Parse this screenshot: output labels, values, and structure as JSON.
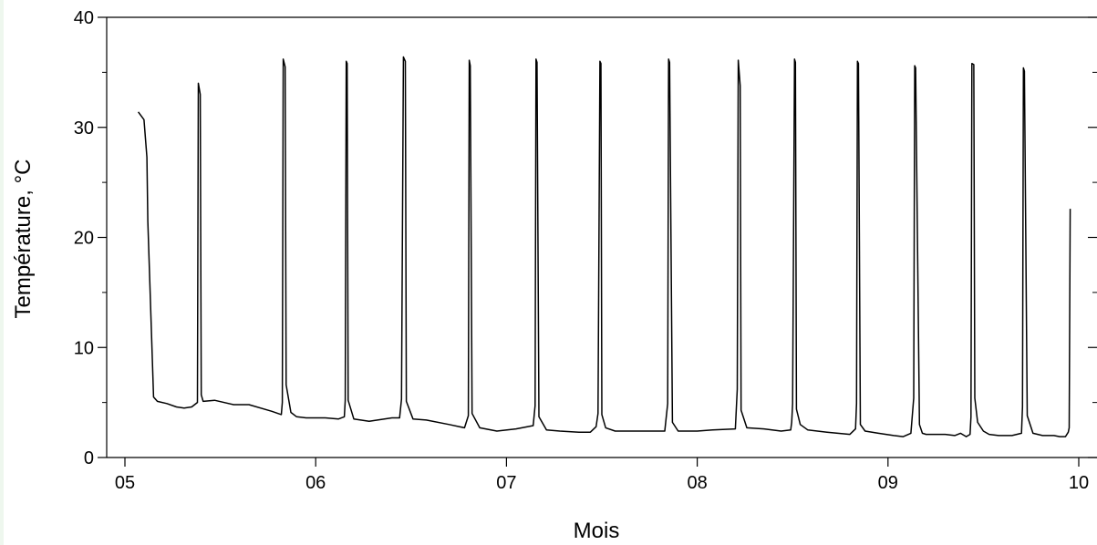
{
  "chart_data": {
    "type": "line",
    "xlabel": "Mois",
    "ylabel": "Température, °C",
    "xlim": [
      4.975,
      10.0
    ],
    "ylim": [
      0,
      40
    ],
    "xticks": [
      {
        "value": 5,
        "label": "05"
      },
      {
        "value": 6,
        "label": "06"
      },
      {
        "value": 7,
        "label": "07"
      },
      {
        "value": 8,
        "label": "08"
      },
      {
        "value": 9,
        "label": "09"
      },
      {
        "value": 10,
        "label": "10"
      }
    ],
    "yticks": [
      {
        "value": 0,
        "label": "0"
      },
      {
        "value": 10,
        "label": "10"
      },
      {
        "value": 20,
        "label": "20"
      },
      {
        "value": 30,
        "label": "30"
      },
      {
        "value": 40,
        "label": "40"
      }
    ],
    "y_minor_ticks": [
      5,
      15,
      25,
      35
    ],
    "grid": false,
    "series": [
      {
        "color": "#000000",
        "points": [
          [
            5.07,
            31.4
          ],
          [
            5.1,
            30.7
          ],
          [
            5.115,
            27.3
          ],
          [
            5.12,
            21.5
          ],
          [
            5.15,
            5.5
          ],
          [
            5.17,
            5.1
          ],
          [
            5.22,
            4.9
          ],
          [
            5.27,
            4.6
          ],
          [
            5.31,
            4.5
          ],
          [
            5.35,
            4.6
          ],
          [
            5.38,
            5.0
          ],
          [
            5.385,
            34.0
          ],
          [
            5.395,
            33.0
          ],
          [
            5.4,
            5.7
          ],
          [
            5.41,
            5.1
          ],
          [
            5.47,
            5.2
          ],
          [
            5.57,
            4.8
          ],
          [
            5.65,
            4.8
          ],
          [
            5.77,
            4.2
          ],
          [
            5.82,
            3.9
          ],
          [
            5.825,
            5.0
          ],
          [
            5.83,
            36.2
          ],
          [
            5.84,
            35.5
          ],
          [
            5.845,
            6.6
          ],
          [
            5.87,
            4.1
          ],
          [
            5.9,
            3.7
          ],
          [
            5.95,
            3.6
          ],
          [
            6.05,
            3.6
          ],
          [
            6.12,
            3.5
          ],
          [
            6.15,
            3.7
          ],
          [
            6.155,
            5.2
          ],
          [
            6.16,
            36.0
          ],
          [
            6.165,
            35.8
          ],
          [
            6.17,
            5.2
          ],
          [
            6.2,
            3.5
          ],
          [
            6.28,
            3.3
          ],
          [
            6.4,
            3.6
          ],
          [
            6.44,
            3.6
          ],
          [
            6.45,
            5.3
          ],
          [
            6.46,
            36.4
          ],
          [
            6.47,
            36.0
          ],
          [
            6.475,
            5.1
          ],
          [
            6.51,
            3.5
          ],
          [
            6.58,
            3.4
          ],
          [
            6.7,
            3.0
          ],
          [
            6.78,
            2.7
          ],
          [
            6.8,
            3.8
          ],
          [
            6.805,
            36.1
          ],
          [
            6.81,
            35.6
          ],
          [
            6.82,
            4.0
          ],
          [
            6.86,
            2.7
          ],
          [
            6.95,
            2.4
          ],
          [
            7.05,
            2.6
          ],
          [
            7.14,
            2.9
          ],
          [
            7.15,
            4.7
          ],
          [
            7.155,
            36.2
          ],
          [
            7.16,
            35.9
          ],
          [
            7.17,
            3.7
          ],
          [
            7.21,
            2.5
          ],
          [
            7.28,
            2.4
          ],
          [
            7.38,
            2.3
          ],
          [
            7.44,
            2.3
          ],
          [
            7.47,
            2.8
          ],
          [
            7.48,
            4.0
          ],
          [
            7.49,
            36.0
          ],
          [
            7.495,
            35.8
          ],
          [
            7.5,
            3.9
          ],
          [
            7.52,
            2.7
          ],
          [
            7.57,
            2.4
          ],
          [
            7.7,
            2.4
          ],
          [
            7.83,
            2.4
          ],
          [
            7.845,
            4.9
          ],
          [
            7.85,
            36.2
          ],
          [
            7.855,
            35.9
          ],
          [
            7.87,
            3.2
          ],
          [
            7.9,
            2.4
          ],
          [
            8.0,
            2.4
          ],
          [
            8.08,
            2.5
          ],
          [
            8.2,
            2.6
          ],
          [
            8.21,
            6.2
          ],
          [
            8.215,
            36.1
          ],
          [
            8.225,
            33.8
          ],
          [
            8.23,
            4.3
          ],
          [
            8.26,
            2.7
          ],
          [
            8.35,
            2.6
          ],
          [
            8.44,
            2.4
          ],
          [
            8.49,
            2.5
          ],
          [
            8.495,
            3.2
          ],
          [
            8.5,
            4.9
          ],
          [
            8.51,
            36.2
          ],
          [
            8.515,
            35.9
          ],
          [
            8.52,
            4.4
          ],
          [
            8.54,
            3.0
          ],
          [
            8.58,
            2.5
          ],
          [
            8.68,
            2.3
          ],
          [
            8.8,
            2.1
          ],
          [
            8.83,
            2.6
          ],
          [
            8.835,
            4.9
          ],
          [
            8.84,
            36.0
          ],
          [
            8.845,
            35.8
          ],
          [
            8.855,
            3.0
          ],
          [
            8.88,
            2.4
          ],
          [
            8.95,
            2.2
          ],
          [
            9.03,
            2.0
          ],
          [
            9.08,
            1.9
          ],
          [
            9.12,
            2.2
          ],
          [
            9.135,
            5.4
          ],
          [
            9.14,
            35.6
          ],
          [
            9.145,
            35.4
          ],
          [
            9.165,
            3.0
          ],
          [
            9.18,
            2.2
          ],
          [
            9.2,
            2.1
          ],
          [
            9.3,
            2.1
          ],
          [
            9.35,
            2.0
          ],
          [
            9.38,
            2.2
          ],
          [
            9.41,
            1.9
          ],
          [
            9.43,
            2.1
          ],
          [
            9.435,
            3.7
          ],
          [
            9.44,
            35.8
          ],
          [
            9.45,
            35.7
          ],
          [
            9.455,
            5.4
          ],
          [
            9.47,
            3.2
          ],
          [
            9.5,
            2.4
          ],
          [
            9.53,
            2.1
          ],
          [
            9.58,
            2.0
          ],
          [
            9.65,
            2.0
          ],
          [
            9.7,
            2.2
          ],
          [
            9.705,
            4.6
          ],
          [
            9.71,
            35.4
          ],
          [
            9.715,
            35.1
          ],
          [
            9.73,
            3.8
          ],
          [
            9.76,
            2.2
          ],
          [
            9.81,
            2.0
          ],
          [
            9.87,
            2.0
          ],
          [
            9.9,
            1.9
          ],
          [
            9.93,
            1.9
          ],
          [
            9.945,
            2.3
          ],
          [
            9.95,
            2.7
          ],
          [
            9.955,
            22.6
          ]
        ]
      }
    ]
  }
}
